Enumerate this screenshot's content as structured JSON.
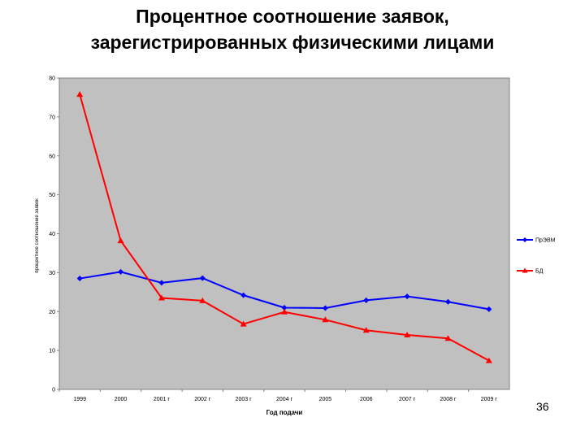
{
  "slide": {
    "title_line1": "Процентное соотношение заявок,",
    "title_line2": "зарегистрированных физическими лицами",
    "page_number": "36"
  },
  "chart_data": {
    "type": "line",
    "title": "",
    "xlabel": "Год подачи",
    "ylabel": "процентное соотношение заявок",
    "ylim": [
      0,
      80
    ],
    "yticks": [
      "0",
      "10",
      "20",
      "30",
      "40",
      "50",
      "60",
      "70",
      "80"
    ],
    "categories": [
      "1999",
      "2000",
      "2001 г",
      "2002 г",
      "2003 г",
      "2004 г",
      "2005",
      "2006",
      "2007 г",
      "2008 г",
      "2009 г"
    ],
    "grid": false,
    "legend_position": "right",
    "plot_background": "#c0c0c0",
    "series": [
      {
        "name": "ПрЭВМ",
        "color": "#0000ff",
        "marker": "diamond",
        "values": [
          28.5,
          30.2,
          27.4,
          28.6,
          24.2,
          21.0,
          20.9,
          22.9,
          23.9,
          22.5,
          20.6
        ]
      },
      {
        "name": "БД",
        "color": "#ff0000",
        "marker": "triangle",
        "values": [
          75.8,
          38.2,
          23.5,
          22.8,
          16.8,
          19.9,
          17.9,
          15.2,
          14.0,
          13.1,
          7.4
        ]
      }
    ]
  }
}
